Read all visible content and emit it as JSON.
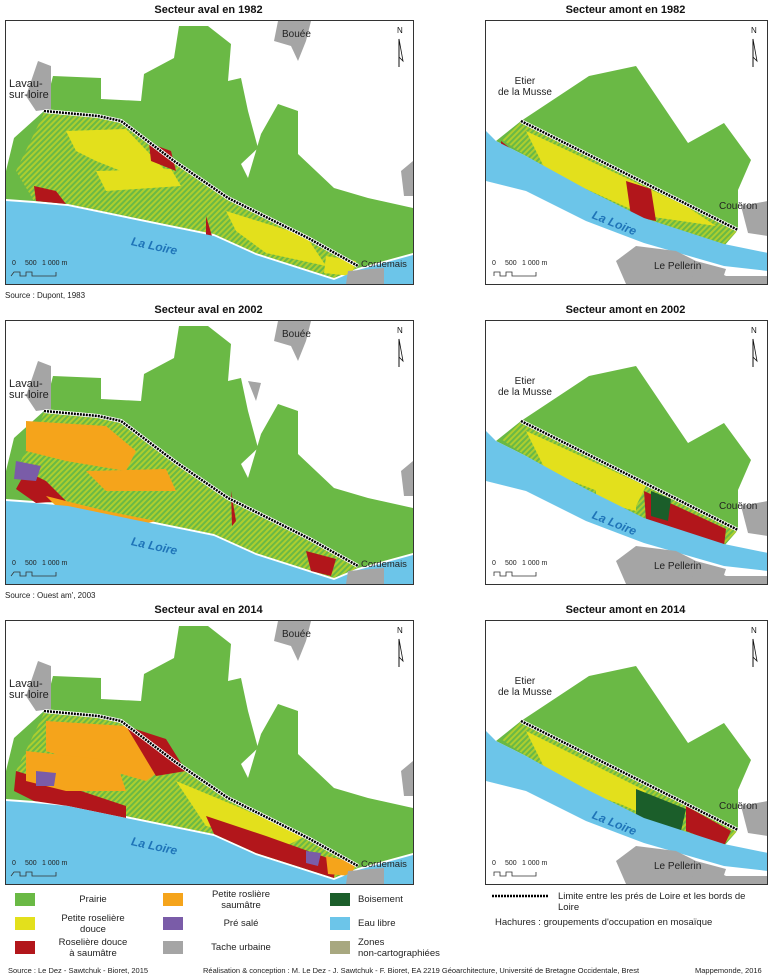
{
  "panels": [
    {
      "title": "Secteur aval en 1982",
      "kind": "aval",
      "year": "1982",
      "source": "Source : Dupont, 1983"
    },
    {
      "title": "Secteur amont en 1982",
      "kind": "amont",
      "year": "1982"
    },
    {
      "title": "Secteur aval en 2002",
      "kind": "aval",
      "year": "2002",
      "source": "Source : Ouest am', 2003"
    },
    {
      "title": "Secteur amont en 2002",
      "kind": "amont",
      "year": "2002"
    },
    {
      "title": "Secteur aval en 2014",
      "kind": "aval",
      "year": "2014"
    },
    {
      "title": "Secteur amont en 2014",
      "kind": "amont",
      "year": "2014"
    }
  ],
  "places": {
    "bouee": "Bouée",
    "lavau1": "Lavau-",
    "lavau2": "sur-loire",
    "loire": "La Loire",
    "cordemais": "Cordemais",
    "etier1": "Etier",
    "etier2": "de la Musse",
    "coueron": "Couëron",
    "pellerin": "Le Pellerin"
  },
  "scale": {
    "zero": "0",
    "mid": "500",
    "end": "1 000 m"
  },
  "north": "N",
  "legend": {
    "items": [
      {
        "label1": "Prairie",
        "label2": "",
        "color": "#6ab945"
      },
      {
        "label1": "Petite roselière",
        "label2": "douce",
        "color": "#e3e01c"
      },
      {
        "label1": "Roselière douce",
        "label2": "à saumâtre",
        "color": "#b2161b"
      },
      {
        "label1": "Petite roslière",
        "label2": "saumâtre",
        "color": "#f5a41b"
      },
      {
        "label1": "Pré salé",
        "label2": "",
        "color": "#7a5ca8"
      },
      {
        "label1": "Tache urbaine",
        "label2": "",
        "color": "#a5a5a5"
      },
      {
        "label1": "Boisement",
        "label2": "",
        "color": "#1b5e2a"
      },
      {
        "label1": "Eau libre",
        "label2": "",
        "color": "#6cc5e9"
      },
      {
        "label1": "Zones",
        "label2": "non-cartographiées",
        "color": "#a8a880"
      }
    ],
    "limit": "Limite entre les prés de Loire et les bords de Loire",
    "hatch": "Hachures : groupements d'occupation en mosaïque"
  },
  "footer": {
    "source": "Source :  Le Dez - Sawtchuk - Bioret, 2015",
    "credits": "Réalisation & conception : M. Le Dez - J. Sawtchuk - F. Bioret, EA 2219 Géoarchitecture, Université de Bretagne Occidentale, Brest",
    "journal": "Mappemonde, 2016"
  }
}
